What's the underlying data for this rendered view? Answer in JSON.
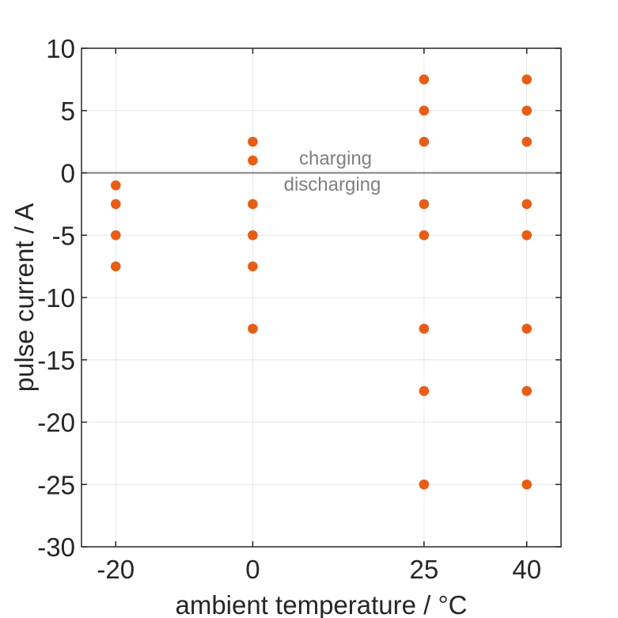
{
  "chart_data": {
    "type": "scatter",
    "xlabel": "ambient temperature / °C",
    "ylabel": "pulse current / A",
    "xlim": [
      -25,
      45
    ],
    "ylim": [
      -30,
      10
    ],
    "x_ticks": [
      -20,
      0,
      25,
      40
    ],
    "y_ticks": [
      10,
      5,
      0,
      -5,
      -10,
      -15,
      -20,
      -25,
      -30
    ],
    "grid": true,
    "legend": "none",
    "series": [
      {
        "x": -20,
        "currents": [
          -1,
          -2.5,
          -5,
          -7.5
        ]
      },
      {
        "x": 0,
        "currents": [
          2.5,
          1,
          -2.5,
          -5,
          -7.5,
          -12.5
        ]
      },
      {
        "x": 25,
        "currents": [
          7.5,
          5,
          2.5,
          -2.5,
          -5,
          -12.5,
          -17.5,
          -25
        ]
      },
      {
        "x": 40,
        "currents": [
          7.5,
          5,
          2.5,
          -2.5,
          -5,
          -12.5,
          -17.5,
          -25
        ]
      }
    ],
    "zero_line": {
      "value": 0,
      "label_above": "charging",
      "label_below": "discharging"
    },
    "colors": {
      "marker": "#e85d15",
      "zero_line": "#808080",
      "annotation_text": "#808080",
      "grid": "#e6e6e6",
      "axis": "#262626",
      "tick_text": "#262626",
      "background": "#ffffff"
    }
  }
}
